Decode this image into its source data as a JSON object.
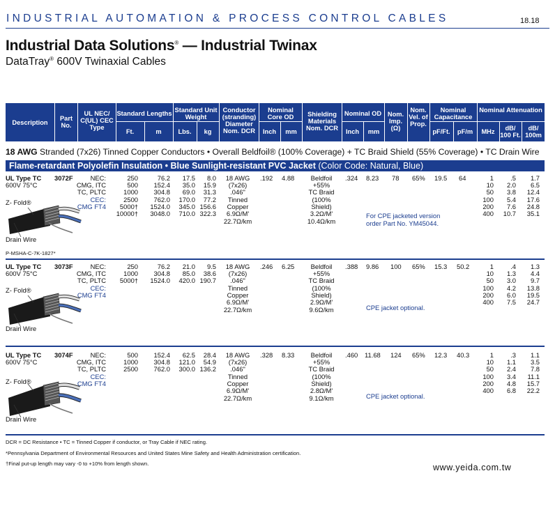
{
  "banner": "INDUSTRIAL AUTOMATION & PROCESS CONTROL CABLES",
  "page_number": "18.18",
  "title": {
    "main": "Industrial Data Solutions",
    "reg": "®",
    "rest": " — Industrial Twinax"
  },
  "subtitle": {
    "main": "DataTray",
    "reg": "®",
    "rest": " 600V Twinaxial Cables"
  },
  "header": {
    "description": "Description",
    "part_no": "Part No.",
    "ul_nec": "UL NEC/ C(UL) CEC Type",
    "std_lengths": "Standard Lengths",
    "ft": "Ft.",
    "m": "m",
    "std_weight": "Standard Unit Weight",
    "lbs": "Lbs.",
    "kg": "kg",
    "conductor": "Conductor (stranding) Diameter Nom. DCR",
    "core_od": "Nominal Core OD",
    "inch": "Inch",
    "mm": "mm",
    "shielding": "Shielding Materials Nom. DCR",
    "nom_od": "Nominal OD",
    "od_inch": "Inch",
    "od_mm": "mm",
    "nom_imp": "Nom. Imp. (Ω)",
    "nom_vel": "Nom. Vel. of Prop.",
    "capacitance": "Nominal Capacitance",
    "pf_ft": "pF/Ft.",
    "pf_m": "pF/m",
    "attenuation": "Nominal Attenuation",
    "mhz": "MHz",
    "db100ft": "dB/ 100 Ft.",
    "db100m": "dB/ 100m"
  },
  "spec_line": {
    "bold": "18 AWG",
    "text": " Stranded (7x26) Tinned Copper Conductors • Overall Beldfoil® (100% Coverage) + TC Braid Shield (55% Coverage) • TC Drain Wire"
  },
  "jacket": {
    "bold": "Flame-retardant Polyolefin Insulation • Blue Sunlight-resistant PVC Jacket",
    "text": " (Color Code: Natural, Blue)"
  },
  "labels": {
    "z_fold": "Z- Fold®",
    "drain_wire": "Drain Wire"
  },
  "rows": [
    {
      "desc": "UL Type TC",
      "rating": "600V 75°C",
      "part": "3072F",
      "ul": [
        "NEC:",
        "CMG, ITC",
        "TC, PLTC"
      ],
      "cec": [
        "CEC:",
        "CMG FT4"
      ],
      "ft": [
        "250",
        "500",
        "1000",
        "2500",
        "5000†",
        "10000†"
      ],
      "m": [
        "76.2",
        "152.4",
        "304.8",
        "762.0",
        "1524.0",
        "3048.0"
      ],
      "lbs": [
        "17.5",
        "35.0",
        "69.0",
        "170.0",
        "345.0",
        "710.0"
      ],
      "kg": [
        "8.0",
        "15.9",
        "31.3",
        "77.2",
        "156.6",
        "322.3"
      ],
      "conductor": [
        "18 AWG",
        "(7x26)",
        ".046\"",
        "Tinned",
        "Copper",
        "6.9Ω/M'",
        "22.7Ω/km"
      ],
      "core_inch": ".192",
      "core_mm": "4.88",
      "shield": [
        "Beldfoil",
        "+55%",
        "TC Braid",
        "(100%",
        "Shield)",
        "3.2Ω/M'",
        "10.4Ω/km"
      ],
      "od_inch": ".324",
      "od_mm": "8.23",
      "imp": "78",
      "vel": "65%",
      "pf_ft": "19.5",
      "pf_m": "64",
      "mhz": [
        "1",
        "10",
        "50",
        "100",
        "200",
        "400"
      ],
      "db_ft": [
        ".5",
        "2.0",
        "3.8",
        "5.4",
        "7.6",
        "10.7"
      ],
      "db_m": [
        "1.7",
        "6.5",
        "12.4",
        "17.6",
        "24.8",
        "35.1"
      ],
      "note": [
        "For CPE jacketed version",
        "order Part No. YM45044."
      ],
      "msha": "P-MSHA-C-7K-1827*"
    },
    {
      "desc": "UL Type TC",
      "rating": "600V 75°C",
      "part": "3073F",
      "ul": [
        "NEC:",
        "CMG, ITC",
        "TC, PLTC"
      ],
      "cec": [
        "CEC:",
        "CMG FT4"
      ],
      "ft": [
        "250",
        "1000",
        "5000†"
      ],
      "m": [
        "76.2",
        "304.8",
        "1524.0"
      ],
      "lbs": [
        "21.0",
        "85.0",
        "420.0"
      ],
      "kg": [
        "9.5",
        "38.6",
        "190.7"
      ],
      "conductor": [
        "18 AWG",
        "(7x26)",
        ".046\"",
        "Tinned",
        "Copper",
        "6.9Ω/M'",
        "22.7Ω/km"
      ],
      "core_inch": ".246",
      "core_mm": "6.25",
      "shield": [
        "Beldfoil",
        "+55%",
        "TC Braid",
        "(100%",
        "Shield)",
        "2.9Ω/M'",
        "9.6Ω/km"
      ],
      "od_inch": ".388",
      "od_mm": "9.86",
      "imp": "100",
      "vel": "65%",
      "pf_ft": "15.3",
      "pf_m": "50.2",
      "mhz": [
        "1",
        "10",
        "50",
        "100",
        "200",
        "400"
      ],
      "db_ft": [
        ".4",
        "1.3",
        "3.0",
        "4.2",
        "6.0",
        "7.5"
      ],
      "db_m": [
        "1.3",
        "4.4",
        "9.7",
        "13.8",
        "19.5",
        "24.7"
      ],
      "note": [
        "CPE jacket optional."
      ]
    },
    {
      "desc": "UL Type TC",
      "rating": "600V 75°C",
      "part": "3074F",
      "ul": [
        "NEC:",
        "CMG, ITC",
        "TC, PLTC"
      ],
      "cec": [
        "CEC:",
        "CMG FT4"
      ],
      "ft": [
        "500",
        "1000",
        "2500"
      ],
      "m": [
        "152.4",
        "304.8",
        "762.0"
      ],
      "lbs": [
        "62.5",
        "121.0",
        "300.0"
      ],
      "kg": [
        "28.4",
        "54.9",
        "136.2"
      ],
      "conductor": [
        "18 AWG",
        "(7x26)",
        ".046\"",
        "Tinned",
        "Copper",
        "6.9Ω/M'",
        "22.7Ω/km"
      ],
      "core_inch": ".328",
      "core_mm": "8.33",
      "shield": [
        "Beldfoil",
        "+55%",
        "TC Braid",
        "(100%",
        "Shield)",
        "2.8Ω/M'",
        "9.1Ω/km"
      ],
      "od_inch": ".460",
      "od_mm": "11.68",
      "imp": "124",
      "vel": "65%",
      "pf_ft": "12.3",
      "pf_m": "40.3",
      "mhz": [
        "1",
        "10",
        "50",
        "100",
        "200",
        "400"
      ],
      "db_ft": [
        ".3",
        "1.1",
        "2.4",
        "3.4",
        "4.8",
        "6.8"
      ],
      "db_m": [
        "1.1",
        "3.5",
        "7.8",
        "11.1",
        "15.7",
        "22.2"
      ],
      "note": [
        "CPE jacket optional."
      ]
    }
  ],
  "footnotes": [
    "DCR = DC Resistance  •  TC = Tinned Copper if conductor, or Tray Cable if NEC rating.",
    "*Pennsylvania Department of Environmental Resources and United States Mine Safety and Health Administration certification.",
    "†Final put-up length may vary -0 to +10% from length shown."
  ],
  "website": "www.yeida.com.tw",
  "colors": {
    "brand_blue": "#1b3d8f",
    "text": "#111111",
    "background": "#ffffff"
  }
}
